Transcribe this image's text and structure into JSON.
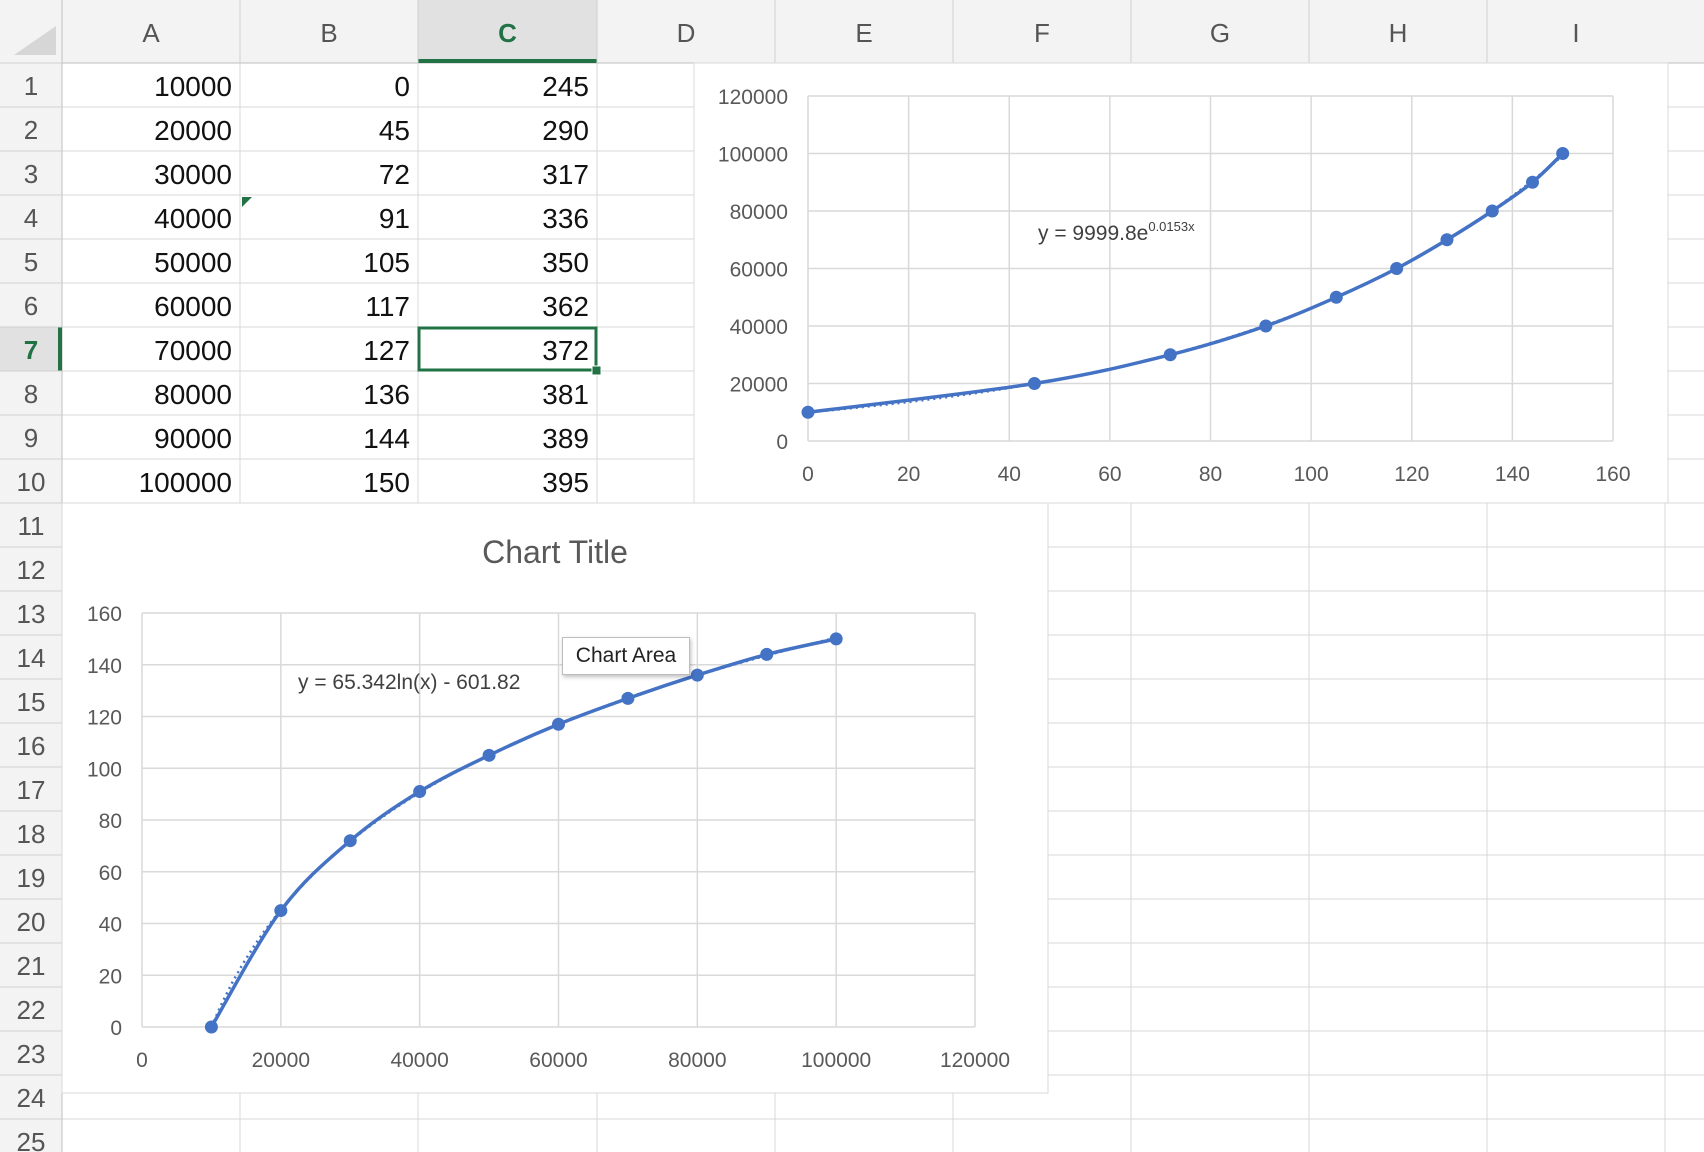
{
  "columns": [
    "A",
    "B",
    "C",
    "D",
    "E",
    "F",
    "G",
    "H",
    "I"
  ],
  "selected_column": "C",
  "rows": [
    "1",
    "2",
    "3",
    "4",
    "5",
    "6",
    "7",
    "8",
    "9",
    "10",
    "11",
    "12",
    "13",
    "14",
    "15",
    "16",
    "17",
    "18",
    "19",
    "20",
    "21",
    "22",
    "23",
    "24",
    "25"
  ],
  "selected_row": "7",
  "active_cell": "C7",
  "cells": [
    [
      "10000",
      "0",
      "245"
    ],
    [
      "20000",
      "45",
      "290"
    ],
    [
      "30000",
      "72",
      "317"
    ],
    [
      "40000",
      "91",
      "336"
    ],
    [
      "50000",
      "105",
      "350"
    ],
    [
      "60000",
      "117",
      "362"
    ],
    [
      "70000",
      "127",
      "372"
    ],
    [
      "80000",
      "136",
      "381"
    ],
    [
      "90000",
      "144",
      "389"
    ],
    [
      "100000",
      "150",
      "395"
    ]
  ],
  "colors": {
    "series": "#4472c4",
    "selection": "#217346",
    "grid": "#d9d9d9",
    "header_bg": "#f3f3f3"
  },
  "tooltip": "Chart Area",
  "chart_data": [
    {
      "type": "scatter",
      "title": "",
      "x": [
        0,
        45,
        72,
        91,
        105,
        117,
        127,
        136,
        144,
        150
      ],
      "y": [
        10000,
        20000,
        30000,
        40000,
        50000,
        60000,
        70000,
        80000,
        90000,
        100000
      ],
      "xlim": [
        0,
        160
      ],
      "ylim": [
        0,
        120000
      ],
      "xticks": [
        "0",
        "20",
        "40",
        "60",
        "80",
        "100",
        "120",
        "140",
        "160"
      ],
      "yticks": [
        "0",
        "20000",
        "40000",
        "60000",
        "80000",
        "100000",
        "120000"
      ],
      "trendline": {
        "type": "exponential",
        "label_main": "y = 9999.8e",
        "label_sup": "0.0153x"
      },
      "grid": true,
      "legend": "none"
    },
    {
      "type": "scatter",
      "title": "Chart Title",
      "x": [
        10000,
        20000,
        30000,
        40000,
        50000,
        60000,
        70000,
        80000,
        90000,
        100000
      ],
      "y": [
        0,
        45,
        72,
        91,
        105,
        117,
        127,
        136,
        144,
        150
      ],
      "xlim": [
        0,
        120000
      ],
      "ylim": [
        0,
        160
      ],
      "xticks": [
        "0",
        "20000",
        "40000",
        "60000",
        "80000",
        "100000",
        "120000"
      ],
      "yticks": [
        "0",
        "20",
        "40",
        "60",
        "80",
        "100",
        "120",
        "140",
        "160"
      ],
      "trendline": {
        "type": "logarithmic",
        "label_main": "y = 65.342ln(x) - 601.82",
        "label_sup": ""
      },
      "grid": true,
      "legend": "none"
    }
  ]
}
